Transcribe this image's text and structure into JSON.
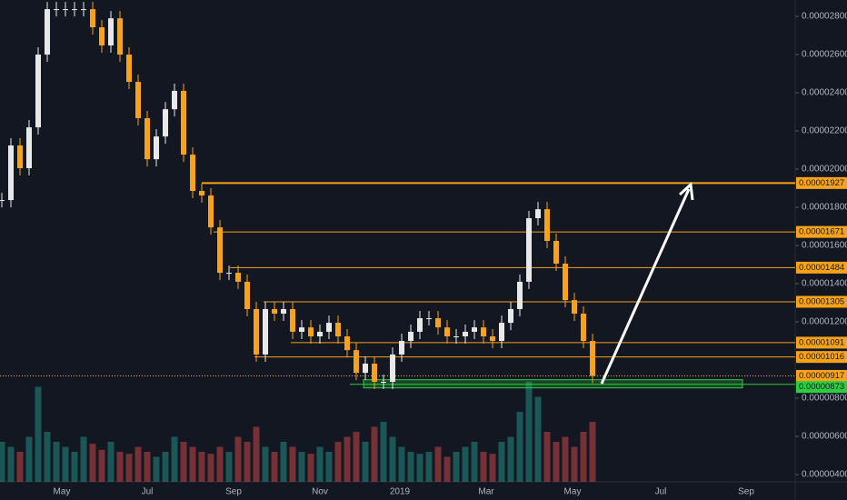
{
  "chart_data": {
    "type": "candlestick",
    "ylim": [
      3.62e-06,
      2.886e-05
    ],
    "yticks": [
      {
        "value": 2.8e-05,
        "label": "0.00002800"
      },
      {
        "value": 2.6e-05,
        "label": "0.00002600"
      },
      {
        "value": 2.4e-05,
        "label": "0.00002400"
      },
      {
        "value": 2.2e-05,
        "label": "0.00002200"
      },
      {
        "value": 2e-05,
        "label": "0.00002000"
      },
      {
        "value": 1.8e-05,
        "label": "0.00001800"
      },
      {
        "value": 1.6e-05,
        "label": "0.00001600"
      },
      {
        "value": 1.4e-05,
        "label": "0.00001400"
      },
      {
        "value": 1.2e-05,
        "label": "0.00001200"
      },
      {
        "value": 8e-06,
        "label": "0.00000800"
      },
      {
        "value": 6e-06,
        "label": "0.00000600"
      },
      {
        "value": 4e-06,
        "label": "0.00000400"
      }
    ],
    "time_labels": [
      "May",
      "Jul",
      "Sep",
      "Nov",
      "2019",
      "Mar",
      "May",
      "Jul",
      "Sep"
    ],
    "levels": [
      {
        "value": 1.927e-05,
        "label": "0.00001927"
      },
      {
        "value": 1.671e-05,
        "label": "0.00001671"
      },
      {
        "value": 1.484e-05,
        "label": "0.00001484"
      },
      {
        "value": 1.305e-05,
        "label": "0.00001305"
      },
      {
        "value": 1.091e-05,
        "label": "0.00001091"
      },
      {
        "value": 1.016e-05,
        "label": "0.00001016"
      }
    ],
    "last_price": {
      "value": 9.17e-06,
      "label": "0.00000917"
    },
    "support": {
      "value": 8.73e-06,
      "label": "0.00000873"
    },
    "up_color": "#e8e8e8",
    "down_color": "#f7a21b",
    "level_color": "#f7a21b",
    "support_color": "#2ecc40",
    "closes": [
      1.838e-05,
      2.124e-05,
      2.005e-05,
      2.219e-05,
      2.6e-05,
      2.838e-05,
      2.838e-05,
      2.838e-05,
      2.838e-05,
      2.838e-05,
      2.743e-05,
      2.648e-05,
      2.79e-05,
      2.6e-05,
      2.457e-05,
      2.267e-05,
      2.052e-05,
      2.171e-05,
      2.314e-05,
      2.41e-05,
      2.076e-05,
      1.886e-05,
      1.862e-05,
      1.695e-05,
      1.457e-05,
      1.457e-05,
      1.41e-05,
      1.267e-05,
      1.029e-05,
      1.267e-05,
      1.243e-05,
      1.267e-05,
      1.148e-05,
      1.171e-05,
      1.124e-05,
      1.148e-05,
      1.195e-05,
      1.124e-05,
      1.052e-05,
      9.33e-06,
      9.81e-06,
      8.86e-06,
      8.86e-06,
      1.029e-05,
      1.1e-05,
      1.148e-05,
      1.219e-05,
      1.219e-05,
      1.171e-05,
      1.124e-05,
      1.124e-05,
      1.148e-05,
      1.171e-05,
      1.124e-05,
      1.1e-05,
      1.195e-05,
      1.267e-05,
      1.41e-05,
      1.743e-05,
      1.79e-05,
      1.624e-05,
      1.505e-05,
      1.314e-05,
      1.243e-05,
      1.1e-05,
      9.17e-06
    ],
    "volume": [
      40,
      35,
      30,
      45,
      95,
      50,
      40,
      35,
      30,
      45,
      38,
      32,
      40,
      30,
      28,
      35,
      30,
      25,
      30,
      45,
      40,
      35,
      30,
      28,
      35,
      30,
      45,
      40,
      55,
      35,
      30,
      40,
      35,
      30,
      28,
      35,
      30,
      40,
      45,
      50,
      40,
      55,
      60,
      45,
      35,
      30,
      28,
      30,
      35,
      25,
      30,
      35,
      40,
      30,
      28,
      40,
      45,
      70,
      100,
      85,
      50,
      40,
      45,
      35,
      50,
      60
    ]
  }
}
